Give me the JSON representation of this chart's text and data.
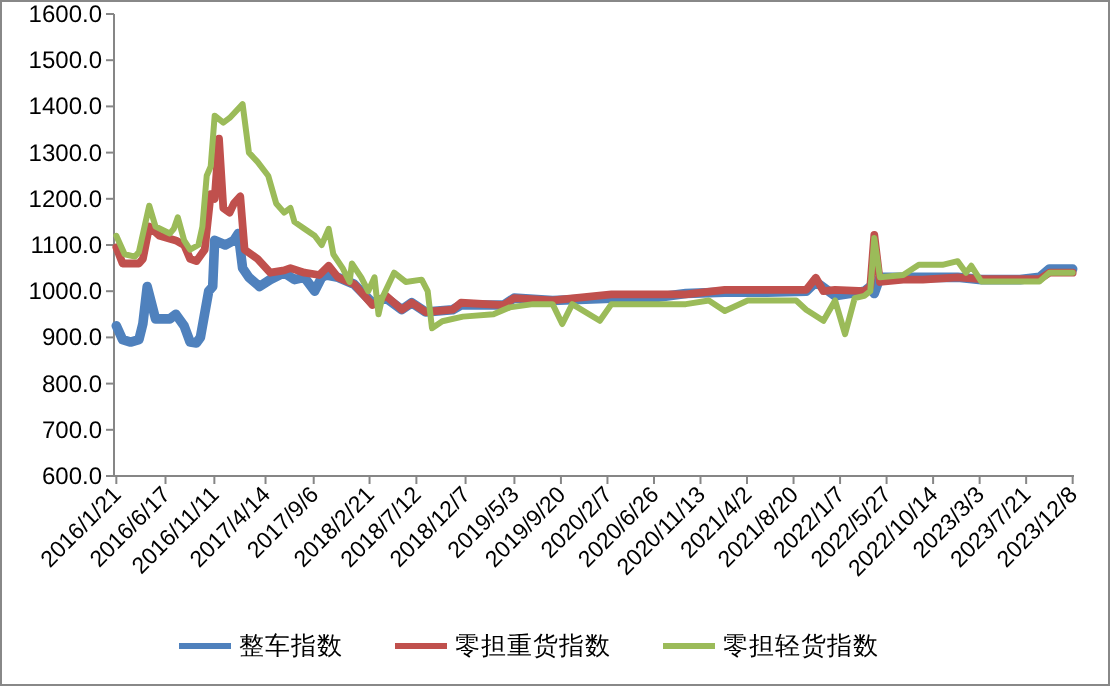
{
  "chart_data": {
    "type": "line",
    "ylim": [
      600,
      1600
    ],
    "yticks": [
      {
        "value": 600,
        "label": "600.0"
      },
      {
        "value": 700,
        "label": "700.0"
      },
      {
        "value": 800,
        "label": "800.0"
      },
      {
        "value": 900,
        "label": "900.0"
      },
      {
        "value": 1000,
        "label": "1000.0"
      },
      {
        "value": 1100,
        "label": "1100.0"
      },
      {
        "value": 1200,
        "label": "1200.0"
      },
      {
        "value": 1300,
        "label": "1300.0"
      },
      {
        "value": 1400,
        "label": "1400.0"
      },
      {
        "value": 1500,
        "label": "1500.0"
      },
      {
        "value": 1600,
        "label": "1600.0"
      }
    ],
    "xlim": [
      "2016-01-14",
      "2023-12-12"
    ],
    "xticks": [
      {
        "value": "2016-01-21",
        "label": "2016/1/21"
      },
      {
        "value": "2016-06-17",
        "label": "2016/6/17"
      },
      {
        "value": "2016-11-11",
        "label": "2016/11/11"
      },
      {
        "value": "2017-04-14",
        "label": "2017/4/14"
      },
      {
        "value": "2017-09-06",
        "label": "2017/9/6"
      },
      {
        "value": "2018-02-21",
        "label": "2018/2/21"
      },
      {
        "value": "2018-07-12",
        "label": "2018/7/12"
      },
      {
        "value": "2018-12-07",
        "label": "2018/12/7"
      },
      {
        "value": "2019-05-03",
        "label": "2019/5/3"
      },
      {
        "value": "2019-09-20",
        "label": "2019/9/20"
      },
      {
        "value": "2020-02-07",
        "label": "2020/2/7"
      },
      {
        "value": "2020-06-26",
        "label": "2020/6/26"
      },
      {
        "value": "2020-11-13",
        "label": "2020/11/13"
      },
      {
        "value": "2021-04-02",
        "label": "2021/4/2"
      },
      {
        "value": "2021-08-20",
        "label": "2021/8/20"
      },
      {
        "value": "2022-01-07",
        "label": "2022/1/7"
      },
      {
        "value": "2022-05-27",
        "label": "2022/5/27"
      },
      {
        "value": "2022-10-14",
        "label": "2022/10/14"
      },
      {
        "value": "2023-03-03",
        "label": "2023/3/3"
      },
      {
        "value": "2023-07-21",
        "label": "2023/7/21"
      },
      {
        "value": "2023-12-08",
        "label": "2023/12/8"
      }
    ],
    "legend": "bottom",
    "series": [
      {
        "name": "整车指数",
        "color": "#4f81bd",
        "x": [
          "2016-01-21",
          "2016-02-09",
          "2016-03-04",
          "2016-03-29",
          "2016-04-10",
          "2016-04-23",
          "2016-05-18",
          "2016-06-30",
          "2016-07-18",
          "2016-08-12",
          "2016-08-30",
          "2016-09-18",
          "2016-09-30",
          "2016-10-25",
          "2016-11-06",
          "2016-11-12",
          "2016-12-14",
          "2017-01-09",
          "2017-01-22",
          "2017-02-04",
          "2017-02-23",
          "2017-03-27",
          "2017-04-28",
          "2017-06-09",
          "2017-07-10",
          "2017-08-09",
          "2017-09-09",
          "2017-09-30",
          "2017-10-14",
          "2017-11-18",
          "2018-01-06",
          "2018-03-02",
          "2018-04-12",
          "2018-05-29",
          "2018-06-28",
          "2018-08-09",
          "2018-10-29",
          "2018-11-23",
          "2019-04-01",
          "2019-05-02",
          "2019-08-26",
          "2020-02-19",
          "2020-06-16",
          "2020-09-30",
          "2021-01-25",
          "2021-06-01",
          "2021-09-27",
          "2021-10-26",
          "2021-12-23",
          "2022-03-21",
          "2022-04-08",
          "2022-04-20",
          "2022-05-07",
          "2022-07-16",
          "2022-09-13",
          "2022-12-27",
          "2023-03-08",
          "2023-07-03",
          "2023-08-30",
          "2023-09-29",
          "2023-12-08"
        ],
        "values": [
          925,
          895,
          890,
          895,
          930,
          1010,
          940,
          940,
          950,
          925,
          890,
          888,
          900,
          1000,
          1010,
          1110,
          1100,
          1110,
          1125,
          1050,
          1030,
          1010,
          1025,
          1040,
          1025,
          1030,
          1000,
          1030,
          1035,
          1030,
          1015,
          975,
          985,
          960,
          975,
          955,
          960,
          970,
          970,
          985,
          980,
          985,
          985,
          995,
          998,
          998,
          1000,
          1020,
          990,
          1000,
          1010,
          995,
          1030,
          1030,
          1030,
          1030,
          1025,
          1025,
          1030,
          1048,
          1048
        ]
      },
      {
        "name": "零担重货指数",
        "color": "#c0504d",
        "x": [
          "2016-01-21",
          "2016-02-09",
          "2016-03-29",
          "2016-04-10",
          "2016-04-29",
          "2016-05-30",
          "2016-07-18",
          "2016-08-12",
          "2016-08-30",
          "2016-09-18",
          "2016-10-13",
          "2016-10-31",
          "2016-11-12",
          "2016-11-25",
          "2016-12-08",
          "2016-12-27",
          "2017-01-09",
          "2017-01-28",
          "2017-02-10",
          "2017-03-21",
          "2017-04-28",
          "2017-06-09",
          "2017-06-28",
          "2017-08-09",
          "2017-09-23",
          "2017-10-21",
          "2017-11-18",
          "2018-01-06",
          "2018-03-02",
          "2018-04-12",
          "2018-05-29",
          "2018-06-28",
          "2018-08-09",
          "2018-10-29",
          "2018-11-23",
          "2019-04-01",
          "2019-05-02",
          "2019-08-26",
          "2020-02-19",
          "2020-09-30",
          "2021-01-25",
          "2021-09-27",
          "2021-10-26",
          "2021-11-18",
          "2021-12-23",
          "2022-03-21",
          "2022-04-08",
          "2022-04-20",
          "2022-05-07",
          "2022-07-16",
          "2022-09-13",
          "2022-12-27",
          "2023-03-08",
          "2023-08-30",
          "2023-09-29",
          "2023-12-08"
        ],
        "values": [
          1095,
          1060,
          1060,
          1070,
          1140,
          1120,
          1110,
          1100,
          1070,
          1065,
          1090,
          1210,
          1200,
          1330,
          1180,
          1170,
          1190,
          1205,
          1090,
          1070,
          1040,
          1045,
          1050,
          1040,
          1035,
          1055,
          1030,
          1015,
          970,
          990,
          960,
          975,
          955,
          960,
          975,
          970,
          985,
          980,
          993,
          993,
          1003,
          1003,
          1029,
          1000,
          1003,
          1000,
          1010,
          1122,
          1020,
          1025,
          1025,
          1030,
          1026,
          1026,
          1040,
          1040
        ]
      },
      {
        "name": "零担轻货指数",
        "color": "#9bbb59",
        "x": [
          "2016-01-21",
          "2016-02-15",
          "2016-03-17",
          "2016-03-29",
          "2016-04-29",
          "2016-05-18",
          "2016-06-30",
          "2016-07-12",
          "2016-07-24",
          "2016-08-12",
          "2016-08-30",
          "2016-09-24",
          "2016-10-06",
          "2016-10-19",
          "2016-10-31",
          "2016-11-12",
          "2016-12-08",
          "2016-12-27",
          "2017-02-04",
          "2017-02-23",
          "2017-03-21",
          "2017-04-22",
          "2017-05-16",
          "2017-06-09",
          "2017-06-28",
          "2017-07-10",
          "2017-08-09",
          "2017-09-09",
          "2017-09-30",
          "2017-10-21",
          "2017-11-04",
          "2017-12-02",
          "2017-12-23",
          "2017-12-30",
          "2018-01-27",
          "2018-02-17",
          "2018-03-08",
          "2018-03-20",
          "2018-03-31",
          "2018-05-06",
          "2018-06-10",
          "2018-07-28",
          "2018-08-15",
          "2018-08-28",
          "2018-09-28",
          "2018-11-29",
          "2019-03-01",
          "2019-04-19",
          "2019-06-28",
          "2019-08-26",
          "2019-09-24",
          "2019-10-24",
          "2020-01-15",
          "2020-02-19",
          "2020-06-16",
          "2020-09-30",
          "2020-12-08",
          "2021-01-25",
          "2021-04-04",
          "2021-08-28",
          "2021-09-27",
          "2021-11-18",
          "2021-12-23",
          "2022-01-22",
          "2022-02-20",
          "2022-03-21",
          "2022-04-08",
          "2022-04-20",
          "2022-05-07",
          "2022-07-16",
          "2022-09-01",
          "2022-11-11",
          "2022-12-27",
          "2023-01-21",
          "2023-02-06",
          "2023-03-08",
          "2023-08-30",
          "2023-09-29",
          "2023-12-08"
        ],
        "values": [
          1120,
          1080,
          1075,
          1085,
          1185,
          1140,
          1125,
          1135,
          1160,
          1110,
          1090,
          1100,
          1140,
          1250,
          1270,
          1380,
          1365,
          1375,
          1405,
          1300,
          1280,
          1250,
          1190,
          1170,
          1180,
          1150,
          1135,
          1120,
          1100,
          1135,
          1080,
          1050,
          1020,
          1060,
          1030,
          1000,
          1030,
          950,
          985,
          1040,
          1020,
          1025,
          1000,
          920,
          935,
          945,
          950,
          965,
          972,
          972,
          929,
          972,
          936,
          972,
          972,
          972,
          980,
          957,
          980,
          980,
          960,
          936,
          980,
          907,
          985,
          990,
          1000,
          1115,
          1030,
          1035,
          1057,
          1057,
          1065,
          1040,
          1055,
          1021,
          1021,
          1040,
          1040
        ]
      }
    ]
  }
}
